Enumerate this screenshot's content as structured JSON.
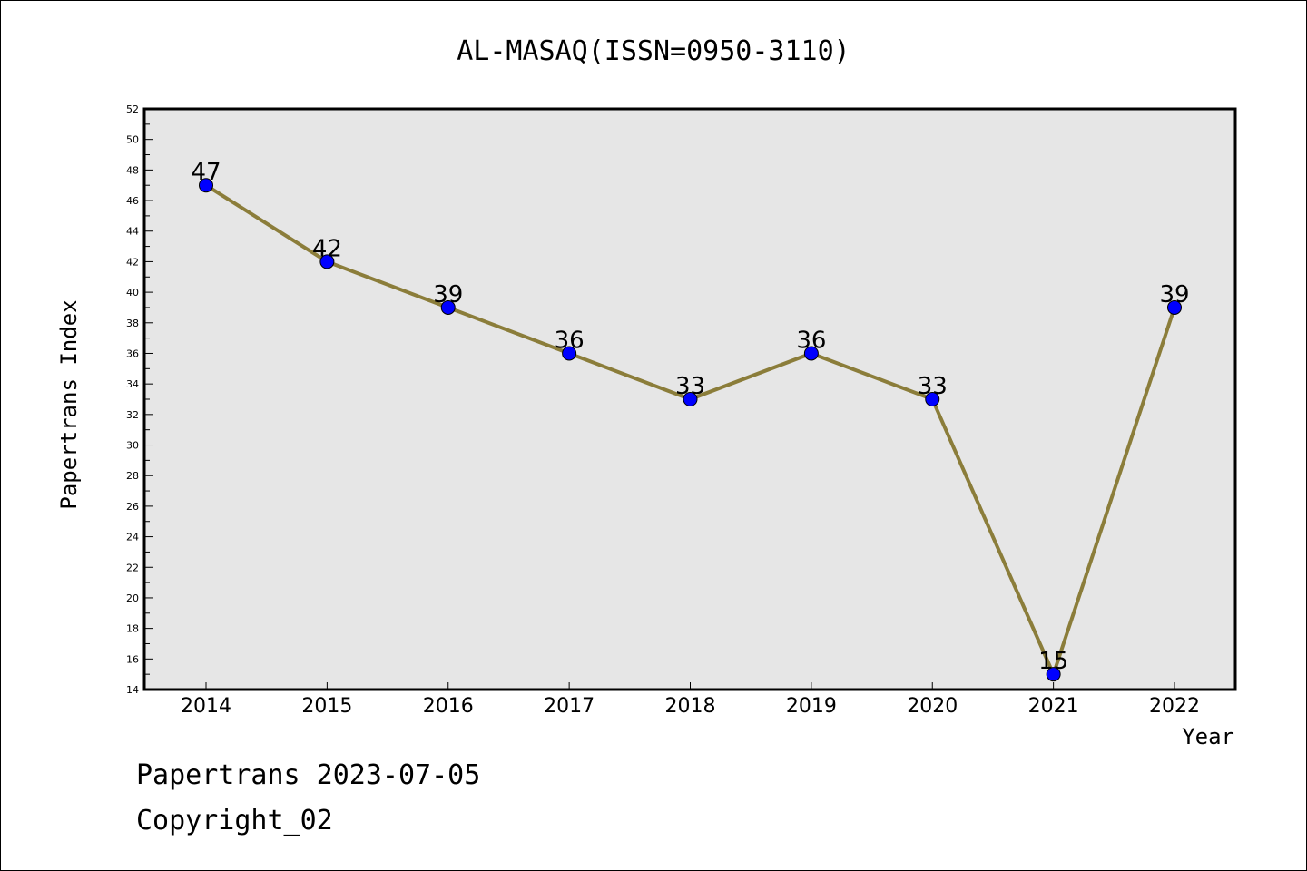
{
  "chart_data": {
    "type": "line",
    "title": "AL-MASAQ(ISSN=0950-3110)",
    "xlabel": "Year",
    "ylabel": "Papertrans Index",
    "categories": [
      "2014",
      "2015",
      "2016",
      "2017",
      "2018",
      "2019",
      "2020",
      "2021",
      "2022"
    ],
    "values": [
      47,
      42,
      39,
      36,
      33,
      36,
      33,
      15,
      39
    ],
    "data_labels": [
      "47",
      "42",
      "39",
      "36",
      "33",
      "36",
      "33",
      "15",
      "39"
    ],
    "ylim": [
      14,
      52
    ],
    "yticks": [
      "14",
      "16",
      "18",
      "20",
      "22",
      "24",
      "26",
      "28",
      "30",
      "32",
      "34",
      "36",
      "38",
      "40",
      "42",
      "44",
      "46",
      "48",
      "50",
      "52"
    ],
    "grid": false,
    "legend": "none",
    "colors": {
      "line": "#8B7D3A",
      "marker": "#0000FF",
      "plot_background": "#E6E6E6"
    }
  },
  "footer": {
    "line1": "Papertrans 2023-07-05",
    "line2": "Copyright_02"
  }
}
